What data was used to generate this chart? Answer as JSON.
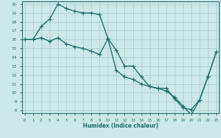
{
  "xlabel": "Humidex (Indice chaleur)",
  "ylabel": "",
  "background_color": "#cce8e8",
  "grid_color": "#aad0d0",
  "line_color": "#1a6b6b",
  "line1_x": [
    0,
    1,
    2,
    3,
    4,
    5,
    6,
    7,
    8,
    9,
    10,
    11,
    12,
    13,
    14,
    15,
    16,
    17,
    18,
    19,
    20,
    21,
    22,
    23
  ],
  "line1_y": [
    16.0,
    16.0,
    17.5,
    18.3,
    20.0,
    19.5,
    19.2,
    19.0,
    19.0,
    18.8,
    16.1,
    14.8,
    13.0,
    13.0,
    11.8,
    10.7,
    10.5,
    10.5,
    9.3,
    8.3,
    8.1,
    9.2,
    11.8,
    14.6
  ],
  "line2_x": [
    0,
    1,
    2,
    3,
    4,
    5,
    6,
    7,
    8,
    9,
    10,
    11,
    12,
    13,
    14,
    15,
    16,
    17,
    18,
    19,
    20,
    21,
    22,
    23
  ],
  "line2_y": [
    16.0,
    16.0,
    16.2,
    15.8,
    16.2,
    15.5,
    15.2,
    15.0,
    14.7,
    14.3,
    16.1,
    12.5,
    11.8,
    11.5,
    11.0,
    10.7,
    10.5,
    10.2,
    9.5,
    8.5,
    7.5,
    9.2,
    11.8,
    14.6
  ],
  "xlim": [
    0,
    23
  ],
  "ylim": [
    8,
    20
  ],
  "yticks": [
    8,
    9,
    10,
    11,
    12,
    13,
    14,
    15,
    16,
    17,
    18,
    19,
    20
  ],
  "xticks": [
    0,
    1,
    2,
    3,
    4,
    5,
    6,
    7,
    8,
    9,
    10,
    11,
    12,
    13,
    14,
    15,
    16,
    17,
    18,
    19,
    20,
    21,
    22,
    23
  ],
  "marker": "+",
  "markersize": 4,
  "linewidth": 1.0
}
